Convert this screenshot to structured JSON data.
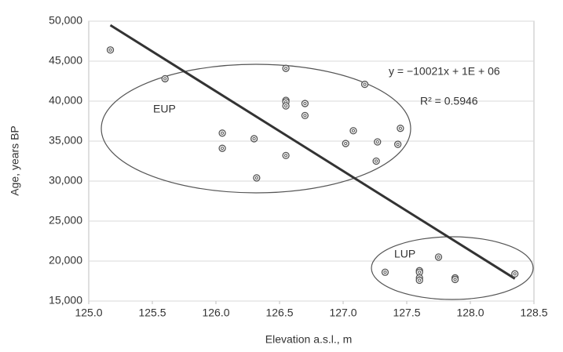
{
  "chart_data": {
    "type": "scatter",
    "x_label": "Elevation a.s.l., m",
    "y_label": "Age, years BP",
    "xlim": [
      125.0,
      128.5
    ],
    "xticks": [
      {
        "value": 125.0,
        "label": "125.0"
      },
      {
        "value": 125.5,
        "label": "125.5"
      },
      {
        "value": 126.0,
        "label": "126.0"
      },
      {
        "value": 126.5,
        "label": "126.5"
      },
      {
        "value": 127.0,
        "label": "127.0"
      },
      {
        "value": 127.5,
        "label": "127.5"
      },
      {
        "value": 128.0,
        "label": "128.0"
      },
      {
        "value": 128.5,
        "label": "128.5"
      }
    ],
    "ylim": [
      15000,
      50000
    ],
    "yticks": [
      {
        "value": 15000,
        "label": "15,000"
      },
      {
        "value": 20000,
        "label": "20,000"
      },
      {
        "value": 25000,
        "label": "25,000"
      },
      {
        "value": 30000,
        "label": "30,000"
      },
      {
        "value": 35000,
        "label": "35,000"
      },
      {
        "value": 40000,
        "label": "40,000"
      },
      {
        "value": 45000,
        "label": "45,000"
      },
      {
        "value": 50000,
        "label": "50,000"
      }
    ],
    "grid": true,
    "series": [
      {
        "color": "#555555",
        "x": [
          125.17,
          125.6,
          126.05,
          126.05,
          126.3,
          126.32,
          126.55,
          126.55,
          126.55,
          126.55,
          126.55,
          126.7,
          126.7,
          127.02,
          127.08,
          127.17,
          127.27,
          127.26,
          127.43,
          127.45,
          127.33,
          127.6,
          127.6,
          127.6,
          127.6,
          127.75,
          127.88,
          127.88,
          128.35
        ],
        "values": [
          46400,
          42800,
          36000,
          34100,
          35300,
          30400,
          44100,
          40100,
          39900,
          39400,
          33200,
          39700,
          38200,
          34700,
          36300,
          42100,
          34900,
          32500,
          34600,
          36600,
          18600,
          18800,
          18600,
          17900,
          17600,
          20500,
          17900,
          17700,
          18400
        ]
      }
    ],
    "trendline": {
      "color": "#333333",
      "x": [
        125.17,
        128.35
      ],
      "values": [
        49500,
        17800
      ]
    },
    "annotations": [
      "EUP",
      "LUP",
      "y = −10021x + 1E + 06",
      "R² = 0.5946"
    ]
  }
}
